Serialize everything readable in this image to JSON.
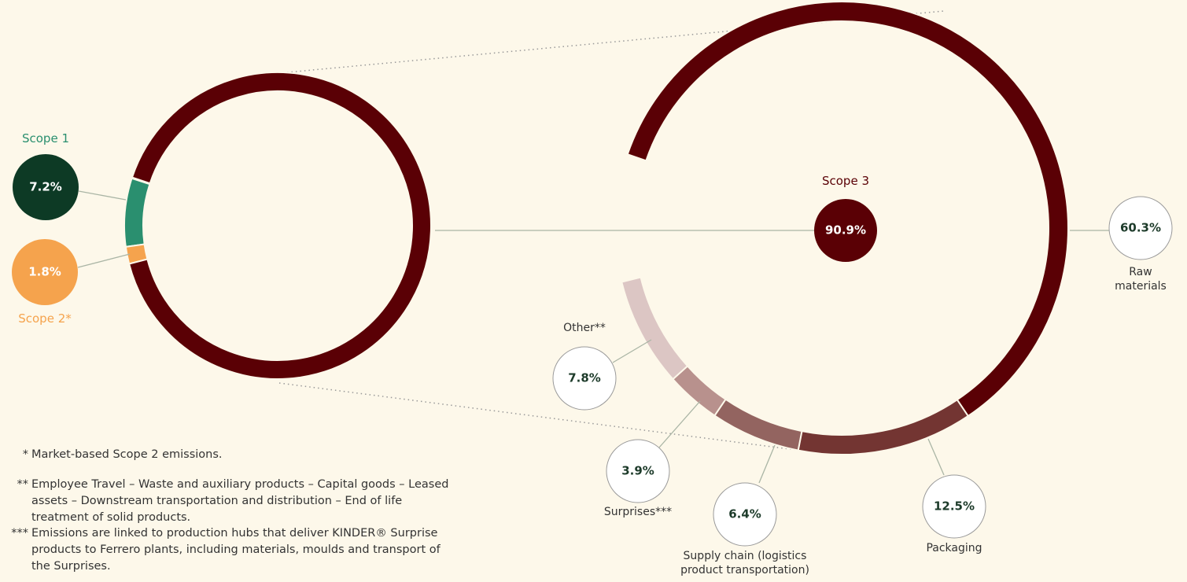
{
  "chart_data": [
    {
      "type": "donut",
      "categories": [
        "Scope 1",
        "Scope 2*",
        "Scope 3"
      ],
      "values": [
        7.2,
        1.8,
        90.9
      ],
      "value_labels": [
        "7.2%",
        "1.8%",
        "90.9%"
      ],
      "colors": [
        "#2a8f6f",
        "#f5a34d",
        "#5a0005"
      ],
      "label_colors": [
        "#2a8f6f",
        "#f5a34d",
        "#5a0005"
      ],
      "bubble_colors": [
        "#0d3a25",
        "#f5a34d",
        "#5a0005"
      ]
    },
    {
      "type": "arc",
      "categories": [
        "Raw materials",
        "Packaging",
        "Supply chain (logistics product transportation)",
        "Surprises***",
        "Other**"
      ],
      "values": [
        60.3,
        12.5,
        6.4,
        3.9,
        7.8
      ],
      "value_labels": [
        "60.3%",
        "12.5%",
        "6.4%",
        "3.9%",
        "7.8%"
      ],
      "colors": [
        "#5a0005",
        "#733532",
        "#936460",
        "#b8918d",
        "#dcc6c4"
      ]
    }
  ],
  "notes": [
    {
      "marker": "*",
      "text": "Market-based Scope 2 emissions."
    },
    {
      "marker": "**",
      "text": "Employee Travel – Waste and auxiliary products – Capital goods – Leased assets – Downstream transportation and distribution – End of life treatment of solid products."
    },
    {
      "marker": "***",
      "text": "Emissions are linked to production hubs that deliver KINDER® Surprise products to Ferrero plants, including materials, moulds and transport of the Surprises."
    }
  ]
}
